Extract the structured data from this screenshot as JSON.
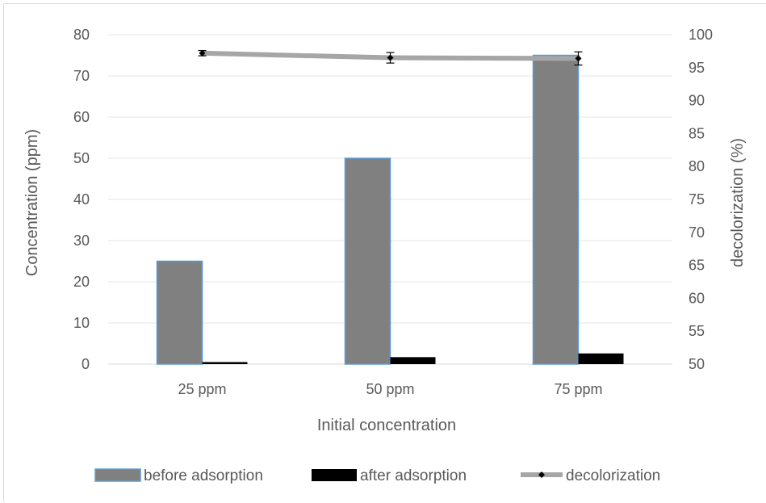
{
  "chart_data": {
    "type": "bar",
    "categories": [
      "25 ppm",
      "50 ppm",
      "75 ppm"
    ],
    "series": [
      {
        "name": "before adsorption",
        "type": "bar",
        "axis": "left",
        "values": [
          25,
          50,
          75
        ],
        "color": "#808080",
        "border": "#5b9bd5"
      },
      {
        "name": "after adsorption",
        "type": "bar",
        "axis": "left",
        "values": [
          0.5,
          1.7,
          2.6
        ],
        "color": "#000000"
      },
      {
        "name": "decolorization",
        "type": "line",
        "axis": "right",
        "values": [
          97.2,
          96.5,
          96.4
        ],
        "errors": [
          0.4,
          0.8,
          1.0
        ],
        "color": "#a6a6a6",
        "marker": "diamond"
      }
    ],
    "title": "",
    "xlabel": "Initial concentration",
    "ylabel": "Concentration  (ppm)",
    "y2label": "decolorization (%)",
    "ylim": [
      0,
      80
    ],
    "y2lim": [
      50,
      100
    ],
    "yticks": [
      "0",
      "10",
      "20",
      "30",
      "40",
      "50",
      "60",
      "70",
      "80"
    ],
    "y2ticks": [
      "50",
      "55",
      "60",
      "65",
      "70",
      "75",
      "80",
      "85",
      "90",
      "95",
      "100"
    ],
    "grid": true,
    "legend_position": "bottom"
  }
}
